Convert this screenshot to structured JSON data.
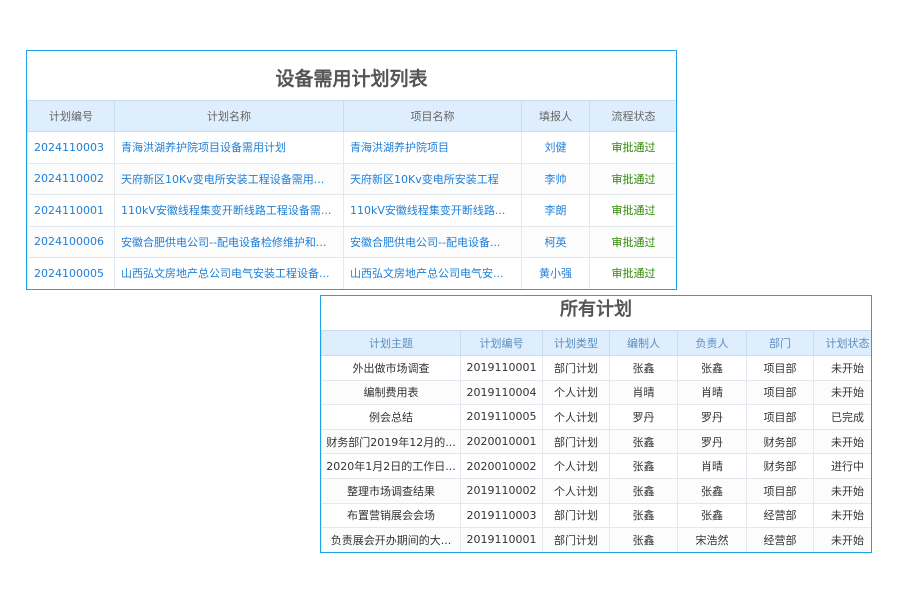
{
  "demand_plans": {
    "title": "设备需用计划列表",
    "columns": [
      "计划编号",
      "计划名称",
      "项目名称",
      "填报人",
      "流程状态"
    ],
    "rows": [
      [
        "2024110003",
        "青海洪湖养护院项目设备需用计划",
        "青海洪湖养护院项目",
        "刘健",
        "审批通过"
      ],
      [
        "2024110002",
        "天府新区10Kv变电所安装工程设备需用...",
        "天府新区10Kv变电所安装工程",
        "李帅",
        "审批通过"
      ],
      [
        "2024110001",
        "110kV安徽线程集变开断线路工程设备需...",
        "110kV安徽线程集变开断线路...",
        "李朗",
        "审批通过"
      ],
      [
        "2024100006",
        "安徽合肥供电公司--配电设备检修维护和...",
        "安徽合肥供电公司--配电设备...",
        "柯英",
        "审批通过"
      ],
      [
        "2024100005",
        "山西弘文房地产总公司电气安装工程设备...",
        "山西弘文房地产总公司电气安...",
        "黄小强",
        "审批通过"
      ]
    ],
    "colors": {
      "link": "#1e7fd8",
      "status": "#2e8b00",
      "border": "#1aa3e8"
    }
  },
  "all_plans": {
    "title": "所有计划",
    "columns": [
      "计划主题",
      "计划编号",
      "计划类型",
      "编制人",
      "负责人",
      "部门",
      "计划状态"
    ],
    "rows": [
      [
        "外出做市场调查",
        "2019110001",
        "部门计划",
        "张鑫",
        "张鑫",
        "项目部",
        "未开始"
      ],
      [
        "编制费用表",
        "2019110004",
        "个人计划",
        "肖晴",
        "肖晴",
        "项目部",
        "未开始"
      ],
      [
        "例会总结",
        "2019110005",
        "个人计划",
        "罗丹",
        "罗丹",
        "项目部",
        "已完成"
      ],
      [
        "财务部门2019年12月的...",
        "2020010001",
        "部门计划",
        "张鑫",
        "罗丹",
        "财务部",
        "未开始"
      ],
      [
        "2020年1月2日的工作日...",
        "2020010002",
        "个人计划",
        "张鑫",
        "肖晴",
        "财务部",
        "进行中"
      ],
      [
        "整理市场调查结果",
        "2019110002",
        "个人计划",
        "张鑫",
        "张鑫",
        "项目部",
        "未开始"
      ],
      [
        "布置营销展会会场",
        "2019110003",
        "部门计划",
        "张鑫",
        "张鑫",
        "经营部",
        "未开始"
      ],
      [
        "负责展会开办期间的大...",
        "2019110001",
        "部门计划",
        "张鑫",
        "宋浩然",
        "经营部",
        "未开始"
      ]
    ]
  }
}
